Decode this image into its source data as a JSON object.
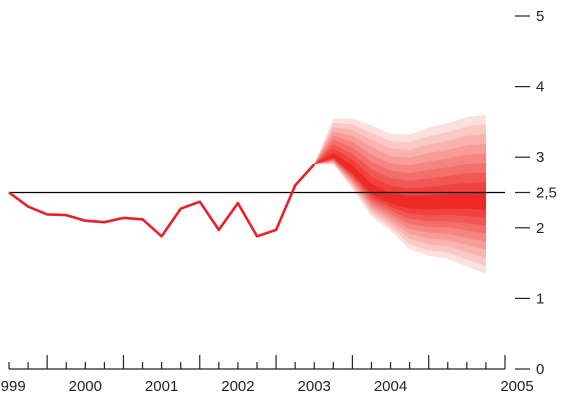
{
  "chart_data": {
    "type": "line",
    "title": "",
    "xlabel": "",
    "ylabel": "",
    "ylim": [
      0,
      5
    ],
    "xlim": [
      1998.5,
      2005.0
    ],
    "x_tick_labels": [
      "1999",
      "2000",
      "2001",
      "2002",
      "2003",
      "2004",
      "2005"
    ],
    "y_tick_labels": [
      "0",
      "1",
      "2",
      "2,5",
      "3",
      "4",
      "5"
    ],
    "y_tick_values": [
      0,
      1,
      2,
      2.5,
      3,
      4,
      5
    ],
    "reference_line": 2.5,
    "grid": false,
    "legend": "none",
    "series": [
      {
        "x": [
          1998.5,
          1998.75,
          1999.0,
          1999.25,
          1999.5,
          1999.75,
          2000.0,
          2000.25,
          2000.5,
          2000.75,
          2001.0,
          2001.25,
          2001.5,
          2001.75,
          2002.0,
          2002.25,
          2002.5
        ],
        "values": [
          2.5,
          2.3,
          2.19,
          2.18,
          2.1,
          2.08,
          2.14,
          2.12,
          1.88,
          2.27,
          2.37,
          1.97,
          2.35,
          1.88,
          1.97,
          2.6,
          2.9
        ]
      }
    ],
    "fan_chart": {
      "x": [
        2002.5,
        2002.75,
        2003.0,
        2003.25,
        2003.5,
        2003.75,
        2004.0,
        2004.25,
        2004.5,
        2004.75
      ],
      "upper": [
        2.9,
        3.55,
        3.55,
        3.45,
        3.33,
        3.32,
        3.42,
        3.48,
        3.57,
        3.6
      ],
      "central": [
        2.9,
        3.0,
        2.8,
        2.52,
        2.39,
        2.34,
        2.34,
        2.36,
        2.37,
        2.37
      ],
      "lower": [
        2.9,
        2.9,
        2.55,
        2.16,
        1.96,
        1.7,
        1.6,
        1.56,
        1.45,
        1.35
      ]
    },
    "colors": {
      "line": "#e8202a",
      "fan_light": "#fde0dc",
      "fan_dark": "#ee2a25",
      "reference_line": "#000000",
      "axis": "#222222"
    }
  }
}
